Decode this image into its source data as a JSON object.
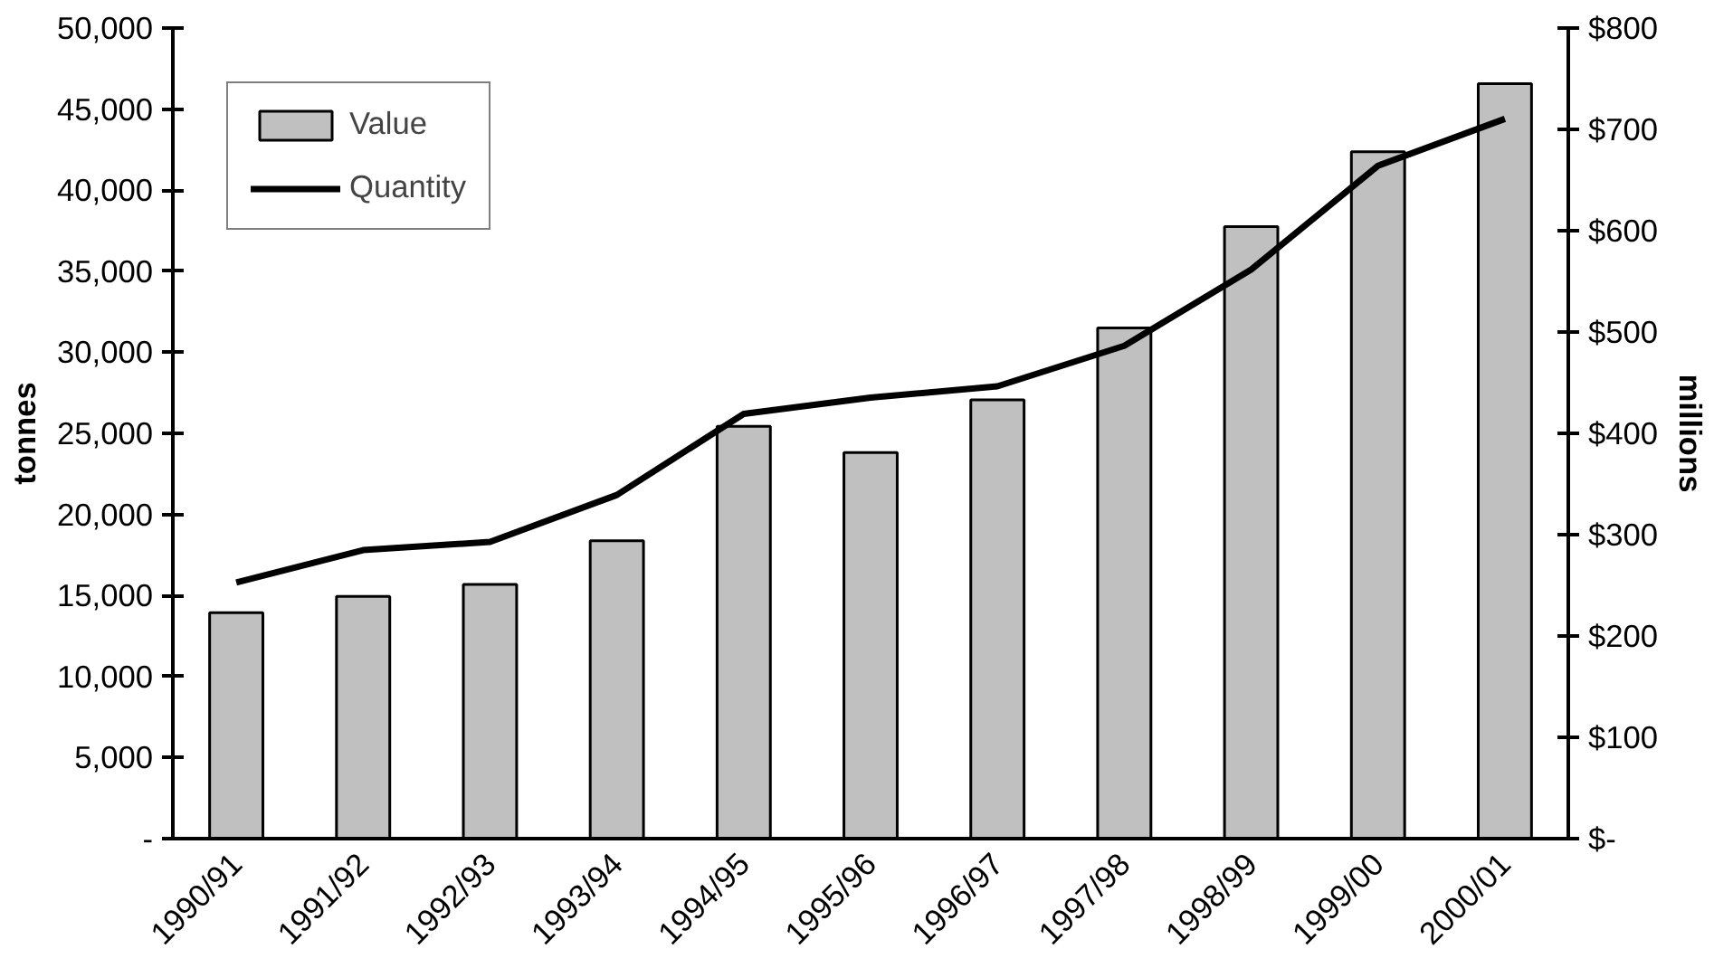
{
  "chart_data": {
    "type": "bar",
    "ylabel": "tonnes",
    "y2label": "millions",
    "categories": [
      "1990/91",
      "1991/92",
      "1992/93",
      "1993/94",
      "1994/95",
      "1995/96",
      "1996/97",
      "1997/98",
      "1998/99",
      "1999/00",
      "2000/01"
    ],
    "series": [
      {
        "name": "Value",
        "axis": "y2",
        "color": "#c0c0c0",
        "values": [
          223,
          239,
          251,
          294,
          407,
          381,
          433,
          504,
          604,
          678,
          745
        ]
      },
      {
        "name": "Quantity",
        "type": "line",
        "color": "#000000",
        "values": [
          15800,
          17800,
          18300,
          21200,
          26200,
          27200,
          27900,
          30400,
          35100,
          41500,
          44400
        ]
      }
    ],
    "ylim": [
      0,
      50000
    ],
    "yticks": [
      {
        "value": 0,
        "label": "-"
      },
      {
        "value": 5000,
        "label": "5,000"
      },
      {
        "value": 10000,
        "label": "10,000"
      },
      {
        "value": 15000,
        "label": "15,000"
      },
      {
        "value": 20000,
        "label": "20,000"
      },
      {
        "value": 25000,
        "label": "25,000"
      },
      {
        "value": 30000,
        "label": "30,000"
      },
      {
        "value": 35000,
        "label": "35,000"
      },
      {
        "value": 40000,
        "label": "40,000"
      },
      {
        "value": 45000,
        "label": "45,000"
      },
      {
        "value": 50000,
        "label": "50,000"
      }
    ],
    "y2lim": [
      0,
      800
    ],
    "y2ticks": [
      {
        "value": 0,
        "label": "$-"
      },
      {
        "value": 100,
        "label": "$100"
      },
      {
        "value": 200,
        "label": "$200"
      },
      {
        "value": 300,
        "label": "$300"
      },
      {
        "value": 400,
        "label": "$400"
      },
      {
        "value": 500,
        "label": "$500"
      },
      {
        "value": 600,
        "label": "$600"
      },
      {
        "value": 700,
        "label": "$700"
      },
      {
        "value": 800,
        "label": "$800"
      }
    ],
    "grid": false,
    "legend": "top left",
    "line_style": "solid"
  }
}
